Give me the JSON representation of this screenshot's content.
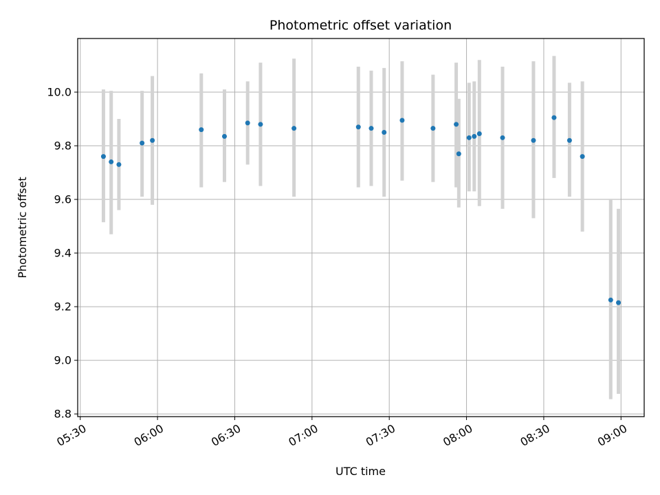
{
  "chart_data": {
    "type": "scatter",
    "title": "Photometric offset variation",
    "xlabel": "UTC time",
    "ylabel": "Photometric offset",
    "x_ticks": [
      "05:30",
      "06:00",
      "06:30",
      "07:00",
      "07:30",
      "08:00",
      "08:30",
      "09:00"
    ],
    "y_ticks": [
      "8.8",
      "9.0",
      "9.2",
      "9.4",
      "9.6",
      "9.8",
      "10.0"
    ],
    "xlim": [
      "05:29",
      "09:09"
    ],
    "ylim": [
      8.79,
      10.2
    ],
    "grid": true,
    "colors": {
      "marker": "#1f77b4",
      "errorbar": "#d3d3d3",
      "grid": "#b0b0b0"
    },
    "series": [
      {
        "points": [
          {
            "x": "05:39",
            "y": 9.76,
            "yerr_low": 9.515,
            "yerr_high": 10.01
          },
          {
            "x": "05:42",
            "y": 9.74,
            "yerr_low": 9.47,
            "yerr_high": 10.005
          },
          {
            "x": "05:45",
            "y": 9.73,
            "yerr_low": 9.56,
            "yerr_high": 9.9
          },
          {
            "x": "05:54",
            "y": 9.81,
            "yerr_low": 9.61,
            "yerr_high": 10.005
          },
          {
            "x": "05:58",
            "y": 9.82,
            "yerr_low": 9.58,
            "yerr_high": 10.06
          },
          {
            "x": "06:17",
            "y": 9.86,
            "yerr_low": 9.645,
            "yerr_high": 10.07
          },
          {
            "x": "06:26",
            "y": 9.835,
            "yerr_low": 9.665,
            "yerr_high": 10.01
          },
          {
            "x": "06:35",
            "y": 9.885,
            "yerr_low": 9.73,
            "yerr_high": 10.04
          },
          {
            "x": "06:40",
            "y": 9.88,
            "yerr_low": 9.65,
            "yerr_high": 10.11
          },
          {
            "x": "06:53",
            "y": 9.865,
            "yerr_low": 9.61,
            "yerr_high": 10.125
          },
          {
            "x": "07:18",
            "y": 9.87,
            "yerr_low": 9.645,
            "yerr_high": 10.095
          },
          {
            "x": "07:23",
            "y": 9.865,
            "yerr_low": 9.65,
            "yerr_high": 10.08
          },
          {
            "x": "07:28",
            "y": 9.85,
            "yerr_low": 9.61,
            "yerr_high": 10.09
          },
          {
            "x": "07:35",
            "y": 9.895,
            "yerr_low": 9.67,
            "yerr_high": 10.115
          },
          {
            "x": "07:47",
            "y": 9.865,
            "yerr_low": 9.665,
            "yerr_high": 10.065
          },
          {
            "x": "07:56",
            "y": 9.88,
            "yerr_low": 9.645,
            "yerr_high": 10.11
          },
          {
            "x": "07:57",
            "y": 9.77,
            "yerr_low": 9.57,
            "yerr_high": 9.975
          },
          {
            "x": "08:01",
            "y": 9.83,
            "yerr_low": 9.63,
            "yerr_high": 10.035
          },
          {
            "x": "08:03",
            "y": 9.835,
            "yerr_low": 9.63,
            "yerr_high": 10.04
          },
          {
            "x": "08:05",
            "y": 9.845,
            "yerr_low": 9.575,
            "yerr_high": 10.12
          },
          {
            "x": "08:14",
            "y": 9.83,
            "yerr_low": 9.565,
            "yerr_high": 10.095
          },
          {
            "x": "08:26",
            "y": 9.82,
            "yerr_low": 9.53,
            "yerr_high": 10.115
          },
          {
            "x": "08:34",
            "y": 9.905,
            "yerr_low": 9.68,
            "yerr_high": 10.135
          },
          {
            "x": "08:40",
            "y": 9.82,
            "yerr_low": 9.61,
            "yerr_high": 10.035
          },
          {
            "x": "08:45",
            "y": 9.76,
            "yerr_low": 9.48,
            "yerr_high": 10.04
          },
          {
            "x": "08:56",
            "y": 9.225,
            "yerr_low": 8.855,
            "yerr_high": 9.6
          },
          {
            "x": "08:59",
            "y": 9.215,
            "yerr_low": 8.875,
            "yerr_high": 9.565
          }
        ]
      }
    ]
  }
}
